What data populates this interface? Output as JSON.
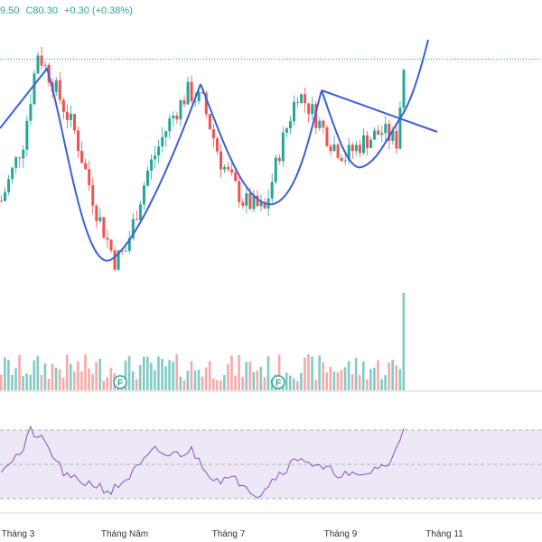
{
  "header": {
    "open_partial": "9.50",
    "close": "C80.30",
    "change": "+0.30 (+0.38%)",
    "color": "#26a69a"
  },
  "colors": {
    "up": "#26a69a",
    "down": "#ef5350",
    "vol_up": "#80cbc4",
    "vol_down": "#f7a9a7",
    "pattern_line": "#3b5fd9",
    "price_line": "#26a69a",
    "rsi_line": "#7e57c2",
    "rsi_band": "#ede7f6",
    "marker": "#26a69a"
  },
  "chart_data": {
    "type": "candlestick",
    "x_ticks": [
      "Tháng 3",
      "Tháng Năm",
      "Tháng 7",
      "Tháng 9",
      "Tháng 11"
    ],
    "last_close": 80.3,
    "markers": [
      {
        "label": "F",
        "after_tick": "Tháng 3"
      },
      {
        "label": "F",
        "after_tick": "Tháng 7"
      }
    ],
    "price_pivots": [
      [
        0,
        66
      ],
      [
        6,
        72
      ],
      [
        10,
        81
      ],
      [
        14,
        78
      ],
      [
        20,
        73
      ],
      [
        26,
        65
      ],
      [
        31,
        60
      ],
      [
        34,
        61
      ],
      [
        40,
        69
      ],
      [
        46,
        74
      ],
      [
        51,
        77
      ],
      [
        55,
        76
      ],
      [
        60,
        70
      ],
      [
        66,
        66
      ],
      [
        72,
        65
      ],
      [
        76,
        71
      ],
      [
        81,
        77
      ],
      [
        85,
        75
      ],
      [
        90,
        72
      ],
      [
        94,
        70.5
      ],
      [
        99,
        72
      ],
      [
        104,
        73
      ],
      [
        108,
        72
      ],
      [
        110,
        79.5
      ]
    ],
    "rsi_pivots": [
      [
        0,
        48
      ],
      [
        6,
        58
      ],
      [
        8,
        70
      ],
      [
        12,
        62
      ],
      [
        18,
        42
      ],
      [
        26,
        38
      ],
      [
        30,
        34
      ],
      [
        36,
        45
      ],
      [
        42,
        58
      ],
      [
        46,
        55
      ],
      [
        52,
        58
      ],
      [
        58,
        42
      ],
      [
        66,
        40
      ],
      [
        70,
        32
      ],
      [
        76,
        45
      ],
      [
        82,
        55
      ],
      [
        86,
        48
      ],
      [
        92,
        45
      ],
      [
        98,
        42
      ],
      [
        104,
        50
      ],
      [
        106,
        48
      ],
      [
        110,
        72
      ]
    ],
    "rsi_levels": [
      70,
      50,
      30
    ],
    "rsi_range": [
      28,
      76
    ],
    "volume_spike_last": true
  }
}
